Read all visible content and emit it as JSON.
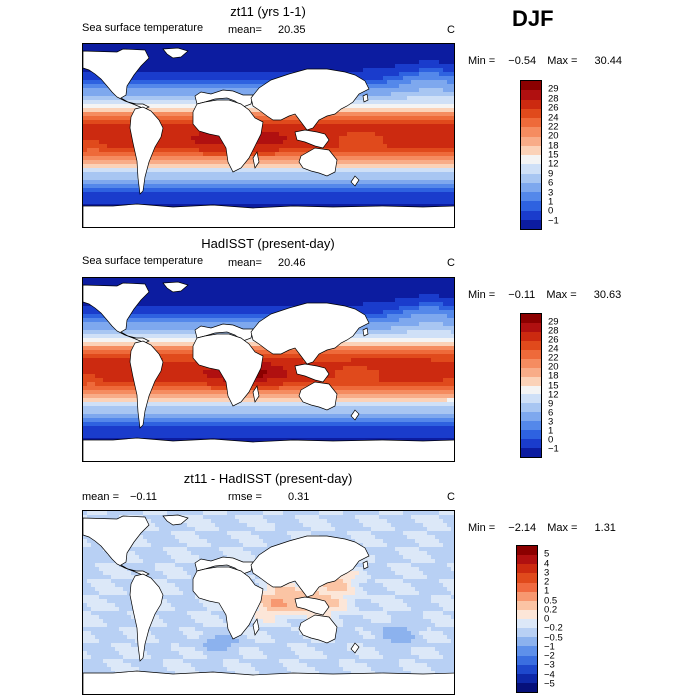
{
  "season": "DJF",
  "panels": [
    {
      "title": "zt11 (yrs 1-1)",
      "variable": "Sea surface temperature",
      "mean_label": "mean=",
      "mean_value": "20.35",
      "units": "C",
      "min_label": "Min =",
      "min_value": "−0.54",
      "max_label": "Max =",
      "max_value": "30.44",
      "levels": [
        "29",
        "28",
        "26",
        "24",
        "22",
        "20",
        "18",
        "15",
        "12",
        "9",
        "6",
        "3",
        "1",
        "0",
        "−1"
      ],
      "colors": [
        "#8b0000",
        "#b01010",
        "#cc2a10",
        "#e04a1c",
        "#ee6a3a",
        "#f58c60",
        "#f8ac88",
        "#fbd2b8",
        "#f4f4f4",
        "#cfe0f7",
        "#a8c6f2",
        "#7ea8ee",
        "#5488ea",
        "#2e62e0",
        "#1a3ccc",
        "#0c1ca0"
      ]
    },
    {
      "title": "HadISST (present-day)",
      "variable": "Sea surface temperature",
      "mean_label": "mean=",
      "mean_value": "20.46",
      "units": "C",
      "min_label": "Min =",
      "min_value": "−0.11",
      "max_label": "Max =",
      "max_value": "30.63",
      "levels": [
        "29",
        "28",
        "26",
        "24",
        "22",
        "20",
        "18",
        "15",
        "12",
        "9",
        "6",
        "3",
        "1",
        "0",
        "−1"
      ],
      "colors": [
        "#8b0000",
        "#b01010",
        "#cc2a10",
        "#e04a1c",
        "#ee6a3a",
        "#f58c60",
        "#f8ac88",
        "#fbd2b8",
        "#f4f4f4",
        "#cfe0f7",
        "#a8c6f2",
        "#7ea8ee",
        "#5488ea",
        "#2e62e0",
        "#1a3ccc",
        "#0c1ca0"
      ]
    },
    {
      "title": "zt11 - HadISST (present-day)",
      "mean_label": "mean =",
      "mean_value": "−0.11",
      "rmse_label": "rmse =",
      "rmse_value": "0.31",
      "units": "C",
      "min_label": "Min =",
      "min_value": "−2.14",
      "max_label": "Max =",
      "max_value": "1.31",
      "levels": [
        "5",
        "4",
        "3",
        "2",
        "1",
        "0.5",
        "0.2",
        "0",
        "−0.2",
        "−0.5",
        "−1",
        "−2",
        "−3",
        "−4",
        "−5"
      ],
      "colors": [
        "#8b0000",
        "#b01010",
        "#cc2a10",
        "#e04a1c",
        "#f06a40",
        "#f79870",
        "#fbc4a4",
        "#fce6d8",
        "#dce8f8",
        "#b8d0f4",
        "#8cb2ee",
        "#5e90ea",
        "#3a6ee0",
        "#1e48cc",
        "#0e28a8",
        "#06107a"
      ]
    }
  ]
}
